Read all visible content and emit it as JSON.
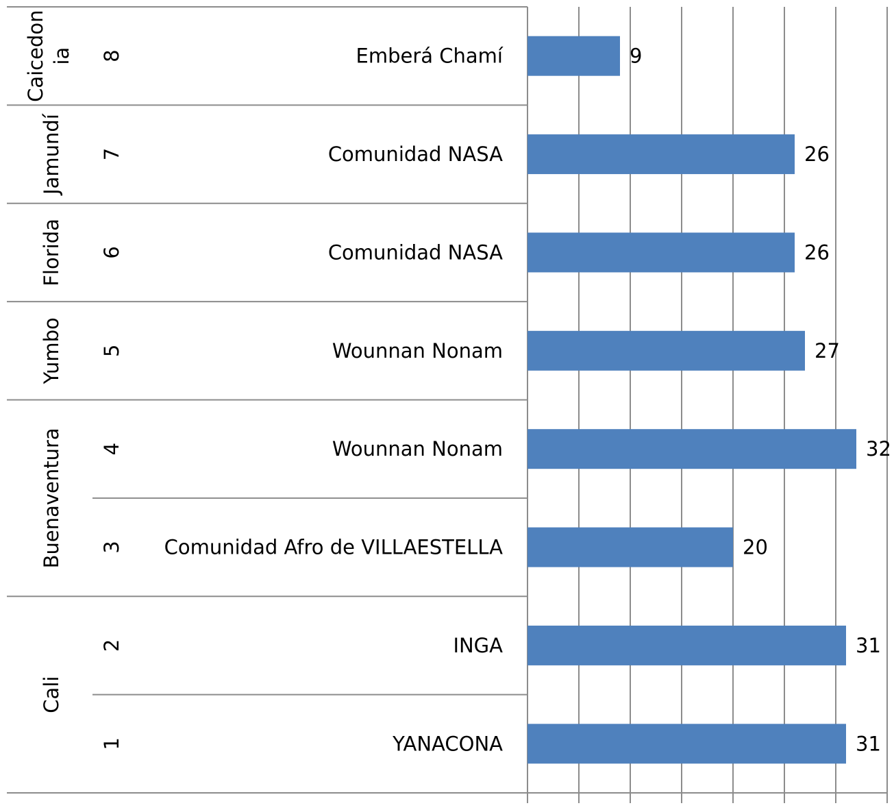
{
  "chart_data": {
    "type": "bar",
    "orientation": "horizontal",
    "groups": [
      {
        "name": "Caicedon\nia",
        "lines": [
          "Caicedon",
          "ia"
        ],
        "items": [
          {
            "number": "8",
            "community": "Emberá Chamí",
            "value": 9
          }
        ]
      },
      {
        "name": "Jamundí",
        "items": [
          {
            "number": "7",
            "community": "Comunidad NASA",
            "value": 26
          }
        ]
      },
      {
        "name": "Florida",
        "items": [
          {
            "number": "6",
            "community": "Comunidad NASA",
            "value": 26
          }
        ]
      },
      {
        "name": "Yumbo",
        "items": [
          {
            "number": "5",
            "community": "Wounnan Nonam",
            "value": 27
          }
        ]
      },
      {
        "name": "Buenaventura",
        "items": [
          {
            "number": "4",
            "community": "Wounnan Nonam",
            "value": 32
          },
          {
            "number": "3",
            "community": "Comunidad Afro de VILLAESTELLA",
            "value": 20
          }
        ]
      },
      {
        "name": "Cali",
        "items": [
          {
            "number": "2",
            "community": "INGA",
            "value": 31
          },
          {
            "number": "1",
            "community": "YANACONA",
            "value": 31
          }
        ]
      }
    ],
    "xlim": [
      0,
      35
    ],
    "grid": true,
    "bar_color": "#4f81bd",
    "gridline_color": "#8c8c8c"
  }
}
